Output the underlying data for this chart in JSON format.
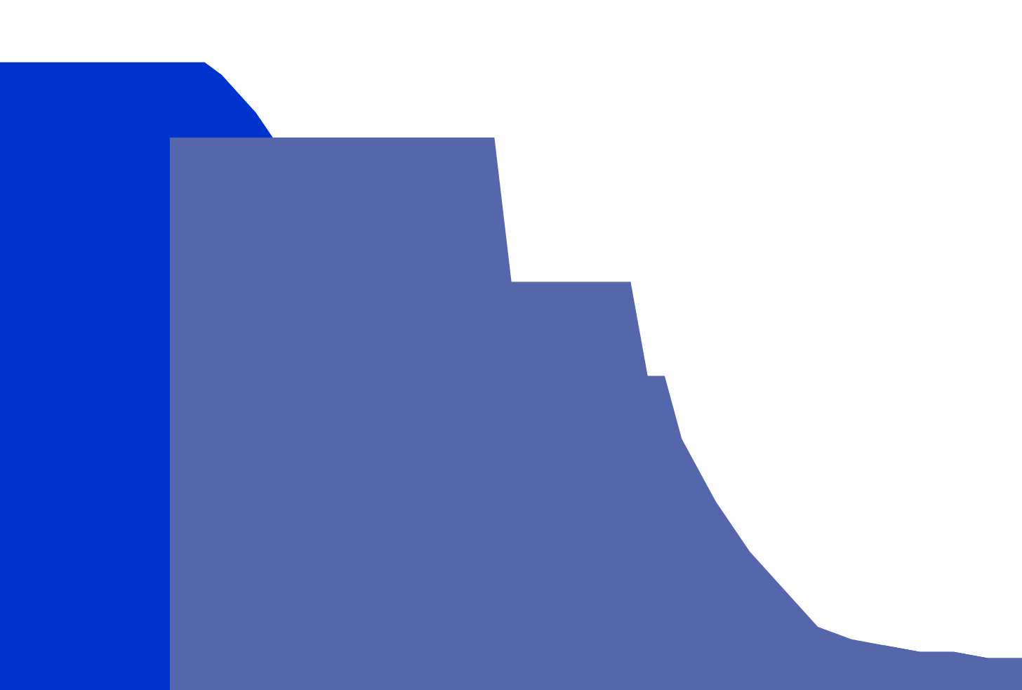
{
  "title": "",
  "background_color": "#ffffff",
  "curve1_color": "#0033cc",
  "curve2_color": "#5566aa",
  "figsize": [
    14.56,
    9.83
  ],
  "dpi": 100,
  "xlim": [
    250,
    550
  ],
  "ylim": [
    0,
    1.1
  ],
  "blue_x": [
    250,
    250,
    265,
    270,
    275,
    278,
    280,
    283,
    285,
    290,
    295,
    300,
    310,
    315,
    320,
    325,
    330,
    340,
    350,
    360,
    370,
    380,
    390,
    400,
    410,
    420,
    430,
    440,
    450,
    460,
    470,
    480,
    490,
    500,
    510,
    520,
    530,
    540,
    550,
    550
  ],
  "blue_y": [
    0,
    1.0,
    1.0,
    1.0,
    1.0,
    1.0,
    1.0,
    1.0,
    1.0,
    1.0,
    1.0,
    1.0,
    1.0,
    0.98,
    0.95,
    0.92,
    0.88,
    0.8,
    0.72,
    0.62,
    0.5,
    0.4,
    0.3,
    0.22,
    0.16,
    0.12,
    0.09,
    0.08,
    0.08,
    0.09,
    0.1,
    0.09,
    0.08,
    0.07,
    0.07,
    0.06,
    0.06,
    0.05,
    0.05,
    0
  ],
  "purple_x": [
    300,
    310,
    320,
    330,
    340,
    350,
    360,
    365,
    370,
    375,
    380,
    385,
    390,
    395,
    400,
    405,
    410,
    415,
    420,
    425,
    430,
    435,
    440,
    445,
    450,
    460,
    470,
    480,
    490,
    500,
    510,
    520,
    530,
    540,
    550,
    550,
    300
  ],
  "purple_y": [
    0.88,
    0.88,
    0.88,
    0.88,
    0.88,
    0.88,
    0.88,
    0.88,
    0.88,
    0.88,
    0.88,
    0.88,
    0.88,
    0.88,
    0.65,
    0.65,
    0.65,
    0.65,
    0.65,
    0.65,
    0.65,
    0.65,
    0.5,
    0.5,
    0.4,
    0.3,
    0.22,
    0.16,
    0.1,
    0.08,
    0.07,
    0.06,
    0.06,
    0.05,
    0.05,
    0,
    0
  ]
}
